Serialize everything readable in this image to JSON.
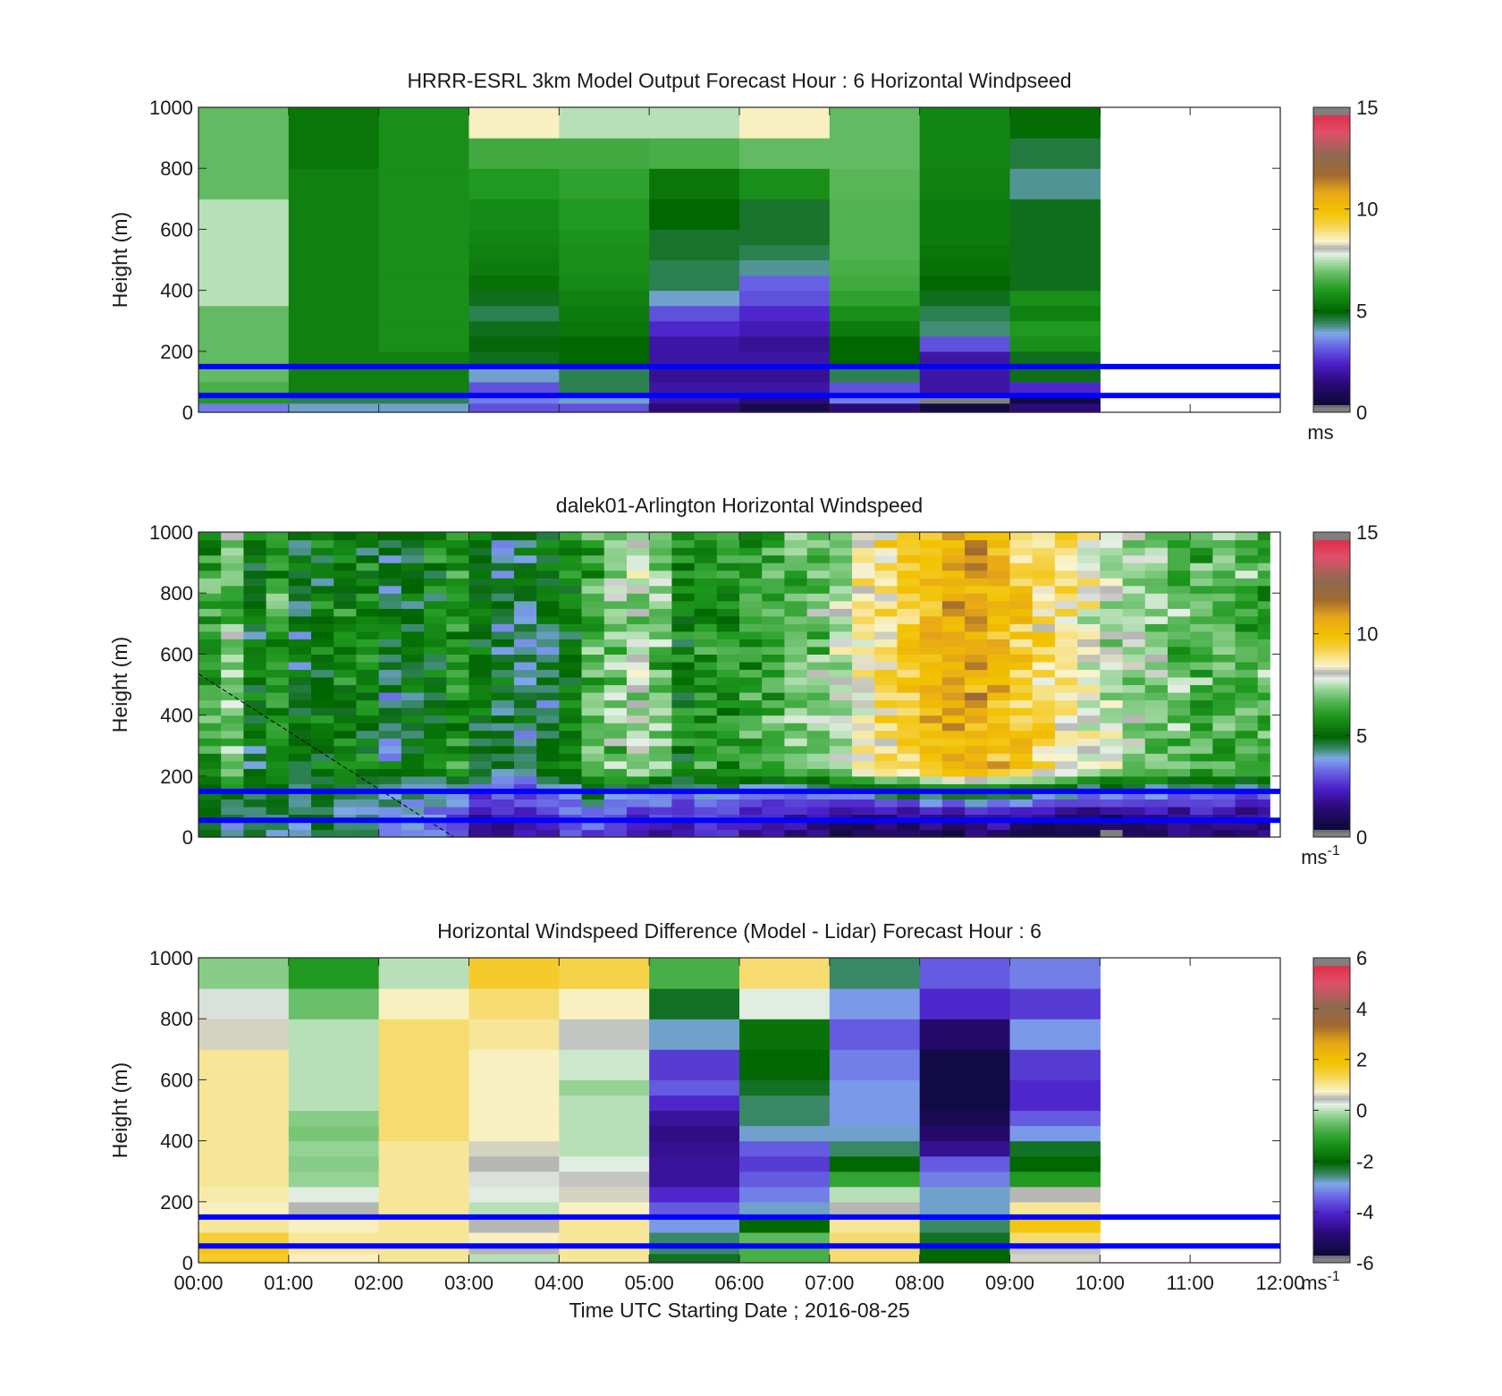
{
  "chart_data": [
    {
      "type": "heatmap",
      "title": "HRRR-ESRL 3km Model Output   Forecast Hour : 6 Horizontal Windpseed",
      "ylabel": "Height (m)",
      "ylim": [
        0,
        1000
      ],
      "yticks": [
        "0",
        "200",
        "400",
        "600",
        "800",
        "1000"
      ],
      "xlim": [
        "00:00",
        "12:00"
      ],
      "xticks": [
        "00:00",
        "01:00",
        "02:00",
        "03:00",
        "04:00",
        "05:00",
        "06:00",
        "07:00",
        "08:00",
        "09:00",
        "10:00",
        "11:00",
        "12:00"
      ],
      "show_xtick_labels": false,
      "x": [
        "00:00",
        "01:00",
        "02:00",
        "03:00",
        "04:00",
        "05:00",
        "06:00",
        "07:00",
        "08:00",
        "09:00"
      ],
      "y_levels": [
        0,
        30,
        60,
        100,
        150,
        200,
        250,
        300,
        350,
        400,
        450,
        500,
        550,
        600,
        700,
        800,
        900,
        1000
      ],
      "values": [
        [
          3.5,
          4.0,
          4.0,
          3.0,
          3.0,
          1.5,
          0.8,
          1.5,
          0.6,
          1.5
        ],
        [
          6.0,
          4.5,
          4.5,
          3.5,
          4.0,
          2.0,
          1.5,
          3.5,
          0.3,
          0.6
        ],
        [
          6.5,
          5.5,
          5.5,
          3.0,
          4.5,
          2.0,
          2.0,
          3.0,
          2.0,
          2.5
        ],
        [
          6.8,
          5.5,
          5.5,
          4.0,
          4.5,
          1.8,
          1.8,
          4.5,
          2.0,
          4.8
        ],
        [
          6.8,
          5.5,
          5.5,
          4.8,
          5.0,
          2.0,
          2.0,
          5.0,
          2.0,
          4.8
        ],
        [
          6.8,
          5.5,
          5.8,
          4.9,
          5.0,
          2.0,
          1.8,
          5.0,
          3.0,
          5.8
        ],
        [
          6.8,
          5.5,
          5.8,
          4.8,
          5.3,
          2.5,
          2.2,
          5.4,
          4.3,
          6.0
        ],
        [
          6.8,
          5.5,
          5.8,
          4.5,
          5.4,
          3.0,
          2.5,
          5.8,
          4.5,
          5.5
        ],
        [
          7.5,
          5.5,
          5.8,
          4.8,
          5.5,
          4.0,
          3.0,
          6.2,
          4.8,
          5.8
        ],
        [
          7.5,
          5.5,
          5.8,
          5.2,
          5.7,
          4.5,
          3.2,
          6.4,
          5.0,
          4.8
        ],
        [
          7.5,
          5.5,
          5.8,
          5.4,
          5.8,
          4.5,
          4.2,
          6.5,
          5.2,
          4.8
        ],
        [
          7.5,
          5.5,
          5.8,
          5.5,
          5.8,
          4.7,
          4.5,
          6.6,
          5.3,
          4.8
        ],
        [
          7.5,
          5.5,
          5.8,
          5.6,
          5.9,
          4.7,
          4.7,
          6.6,
          5.4,
          4.8
        ],
        [
          7.5,
          5.5,
          5.8,
          5.7,
          6.0,
          5.0,
          4.7,
          6.6,
          5.4,
          4.8
        ],
        [
          6.8,
          5.5,
          5.8,
          6.0,
          6.2,
          5.3,
          5.8,
          6.7,
          5.5,
          4.2
        ],
        [
          6.8,
          5.3,
          5.8,
          6.4,
          6.4,
          6.5,
          6.8,
          6.8,
          5.6,
          4.6
        ],
        [
          6.8,
          5.3,
          5.8,
          8.5,
          7.5,
          7.5,
          8.5,
          6.8,
          5.6,
          5.1
        ]
      ],
      "overlay_lines": [
        {
          "y": 150,
          "color": "#0000ff"
        },
        {
          "y": 55,
          "color": "#0000ff"
        }
      ],
      "colorbar": {
        "min": 0,
        "max": 15,
        "ticks": [
          "0",
          "5",
          "10",
          "15"
        ],
        "unit": "ms",
        "unit_sup": ""
      }
    },
    {
      "type": "heatmap",
      "title": "dalek01-Arlington  Horizontal Windspeed",
      "ylabel": "Height (m)",
      "ylim": [
        0,
        1000
      ],
      "yticks": [
        "0",
        "200",
        "400",
        "600",
        "800",
        "1000"
      ],
      "xlim": [
        "00:00",
        "12:00"
      ],
      "xticks": [
        "00:00",
        "01:00",
        "02:00",
        "03:00",
        "04:00",
        "05:00",
        "06:00",
        "07:00",
        "08:00",
        "09:00",
        "10:00",
        "11:00",
        "12:00"
      ],
      "show_xtick_labels": false,
      "x_interval_minutes": 15,
      "x_end": "11:53",
      "column_centers": [
        6.2,
        6.8,
        5.0,
        6.2,
        4.8,
        5.2,
        5.5,
        5.5,
        4.6,
        5.0,
        5.3,
        6.0,
        5.0,
        4.6,
        4.4,
        4.8,
        5.5,
        6.5,
        7.0,
        7.5,
        6.8,
        5.6,
        6.0,
        5.8,
        6.2,
        6.4,
        6.8,
        7.0,
        7.6,
        8.5,
        9.0,
        9.5,
        10.0,
        10.5,
        10.5,
        10.2,
        9.5,
        9.0,
        8.8,
        8.2,
        7.6,
        7.2,
        7.0,
        6.8,
        6.5,
        6.6,
        6.5,
        6.4
      ],
      "surface_values": [
        4.5,
        4.0,
        4.2,
        4.0,
        4.4,
        4.5,
        4.2,
        4.0,
        3.8,
        3.5,
        3.2,
        2.5,
        1.5,
        1.8,
        2.0,
        2.5,
        2.8,
        3.0,
        2.5,
        2.0,
        2.2,
        2.0,
        2.2,
        2.4,
        2.0,
        1.8,
        1.5,
        1.2,
        1.0,
        1.0,
        0.9,
        1.0,
        1.2,
        1.0,
        1.4,
        1.6,
        1.2,
        1.0,
        0.8,
        0.6,
        0.6,
        0.8,
        1.0,
        1.2,
        1.4,
        1.2,
        1.0,
        1.2
      ],
      "overlay_lines": [
        {
          "y": 150,
          "color": "#0000ff"
        },
        {
          "y": 55,
          "color": "#0000ff"
        }
      ],
      "dashed_line": {
        "from": [
          "00:00",
          535
        ],
        "to": [
          "02:50",
          0
        ]
      },
      "colorbar": {
        "min": 0,
        "max": 15,
        "ticks": [
          "0",
          "5",
          "10",
          "15"
        ],
        "unit": "ms",
        "unit_sup": "-1"
      }
    },
    {
      "type": "heatmap",
      "title": "Horizontal Windspeed Difference (Model - Lidar) Forecast Hour : 6",
      "ylabel": "Height (m)",
      "xlabel": "Time UTC  Starting Date ; 2016-08-25",
      "ylim": [
        0,
        1000
      ],
      "yticks": [
        "0",
        "200",
        "400",
        "600",
        "800",
        "1000"
      ],
      "xlim": [
        "00:00",
        "12:00"
      ],
      "xticks": [
        "00:00",
        "01:00",
        "02:00",
        "03:00",
        "04:00",
        "05:00",
        "06:00",
        "07:00",
        "08:00",
        "09:00",
        "10:00",
        "11:00",
        "12:00"
      ],
      "show_xtick_labels": true,
      "x": [
        "00:00",
        "01:00",
        "02:00",
        "03:00",
        "04:00",
        "05:00",
        "06:00",
        "07:00",
        "08:00",
        "09:00"
      ],
      "y_levels": [
        0,
        30,
        60,
        100,
        150,
        200,
        250,
        300,
        350,
        400,
        450,
        500,
        550,
        600,
        700,
        800,
        900,
        1000
      ],
      "values": [
        [
          1.6,
          0.8,
          1.0,
          0.0,
          1.0,
          -2.2,
          -0.8,
          1.2,
          -2.0,
          0.6
        ],
        [
          1.8,
          1.0,
          1.0,
          0.5,
          1.0,
          -2.5,
          -0.8,
          1.2,
          -2.0,
          0.4
        ],
        [
          1.5,
          1.0,
          1.0,
          0.8,
          1.0,
          -2.5,
          -0.6,
          1.2,
          -2.2,
          1.2
        ],
        [
          1.0,
          0.8,
          1.0,
          0.5,
          1.0,
          -3.0,
          -2.0,
          1.0,
          -2.5,
          1.8
        ],
        [
          0.8,
          0.5,
          1.0,
          0.0,
          0.8,
          -3.5,
          -2.8,
          0.5,
          -2.8,
          1.0
        ],
        [
          0.9,
          0.2,
          1.0,
          0.2,
          0.6,
          -4.0,
          -3.2,
          0.0,
          -2.8,
          0.5
        ],
        [
          1.0,
          -0.2,
          1.0,
          0.3,
          0.4,
          -4.5,
          -3.5,
          -1.0,
          -3.2,
          -1.2
        ],
        [
          1.0,
          -0.3,
          1.0,
          0.5,
          0.2,
          -4.5,
          -3.8,
          -2.0,
          -3.5,
          -2.0
        ],
        [
          1.0,
          -0.2,
          1.0,
          0.6,
          0.0,
          -4.6,
          -3.5,
          -2.5,
          -4.6,
          -2.2
        ],
        [
          1.0,
          -0.4,
          1.2,
          0.8,
          0.0,
          -4.7,
          -2.8,
          -2.8,
          -5.0,
          -3.0
        ],
        [
          1.0,
          -0.3,
          1.2,
          0.8,
          0.0,
          -4.5,
          -2.5,
          -3.0,
          -5.3,
          -3.5
        ],
        [
          1.0,
          0.0,
          1.2,
          0.8,
          0.0,
          -4.0,
          -2.5,
          -3.0,
          -5.5,
          -4.0
        ],
        [
          1.0,
          0.0,
          1.2,
          0.8,
          -0.2,
          -3.5,
          -2.2,
          -3.0,
          -5.5,
          -4.0
        ],
        [
          1.0,
          0.0,
          1.2,
          0.8,
          0.1,
          -3.8,
          -2.0,
          -3.2,
          -5.5,
          -3.8
        ],
        [
          0.6,
          0.0,
          1.2,
          1.0,
          0.4,
          -2.8,
          -1.8,
          -3.5,
          -5.0,
          -3.0
        ],
        [
          0.3,
          -0.5,
          0.8,
          1.2,
          0.8,
          -2.2,
          0.2,
          -3.0,
          -4.0,
          -3.8
        ],
        [
          -0.3,
          -1.2,
          0.0,
          1.6,
          1.4,
          -0.8,
          1.2,
          -2.5,
          -3.5,
          -3.2
        ]
      ],
      "overlay_lines": [
        {
          "y": 150,
          "color": "#0000ff"
        },
        {
          "y": 55,
          "color": "#0000ff"
        }
      ],
      "colorbar": {
        "min": -6,
        "max": 6,
        "ticks": [
          "-6",
          "-4",
          "-2",
          "0",
          "2",
          "4",
          "6"
        ],
        "unit": "ms",
        "unit_sup": "-1"
      }
    }
  ],
  "colormaps": {
    "speed": [
      [
        0,
        "#808080"
      ],
      [
        0.02,
        "#808080"
      ],
      [
        0.025,
        "#0a0a35"
      ],
      [
        0.1,
        "#2d0a7a"
      ],
      [
        0.16,
        "#4b1fc9"
      ],
      [
        0.22,
        "#6a6ae6"
      ],
      [
        0.26,
        "#7fa8e8"
      ],
      [
        0.29,
        "#3a8a6a"
      ],
      [
        0.33,
        "#006400"
      ],
      [
        0.4,
        "#1f991f"
      ],
      [
        0.45,
        "#5cb85c"
      ],
      [
        0.49,
        "#a0d8a0"
      ],
      [
        0.52,
        "#e8f0e8"
      ],
      [
        0.54,
        "#b0b0b0"
      ],
      [
        0.56,
        "#f8f4d0"
      ],
      [
        0.62,
        "#f5d040"
      ],
      [
        0.66,
        "#f2c200"
      ],
      [
        0.72,
        "#e8a818"
      ],
      [
        0.78,
        "#a06a30"
      ],
      [
        0.84,
        "#8c6a50"
      ],
      [
        0.92,
        "#e0506a"
      ],
      [
        0.97,
        "#e0304a"
      ],
      [
        0.98,
        "#808080"
      ],
      [
        1.0,
        "#808080"
      ]
    ]
  }
}
